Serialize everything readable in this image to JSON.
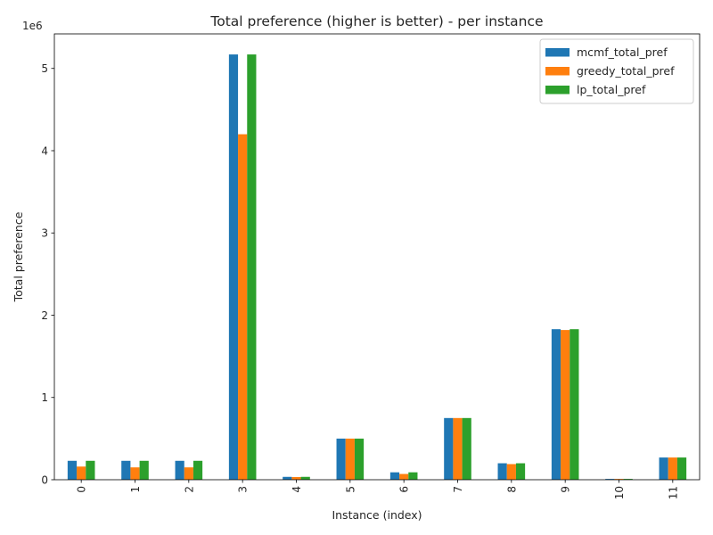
{
  "chart_data": {
    "type": "bar",
    "title": "Total preference (higher is better) - per instance",
    "xlabel": "Instance (index)",
    "ylabel": "Total preference",
    "offset_text": "1e6",
    "categories": [
      "0",
      "1",
      "2",
      "3",
      "4",
      "5",
      "6",
      "7",
      "8",
      "9",
      "10",
      "11"
    ],
    "y_ticks": [
      0,
      1,
      2,
      3,
      4,
      5
    ],
    "ylim": [
      0,
      5.42
    ],
    "y_unit_scale": 1000000,
    "series": [
      {
        "name": "mcmf_total_pref",
        "color": "#1f77b4",
        "values": [
          0.23,
          0.23,
          0.23,
          5.17,
          0.035,
          0.5,
          0.09,
          0.75,
          0.2,
          1.83,
          0.01,
          0.27
        ]
      },
      {
        "name": "greedy_total_pref",
        "color": "#ff7f0e",
        "values": [
          0.16,
          0.15,
          0.15,
          4.2,
          0.033,
          0.5,
          0.07,
          0.75,
          0.19,
          1.82,
          0.01,
          0.27
        ]
      },
      {
        "name": "lp_total_pref",
        "color": "#2ca02c",
        "values": [
          0.23,
          0.23,
          0.23,
          5.17,
          0.035,
          0.5,
          0.09,
          0.75,
          0.2,
          1.83,
          0.01,
          0.27
        ]
      }
    ],
    "legend_position": "top-right",
    "grid": false
  }
}
